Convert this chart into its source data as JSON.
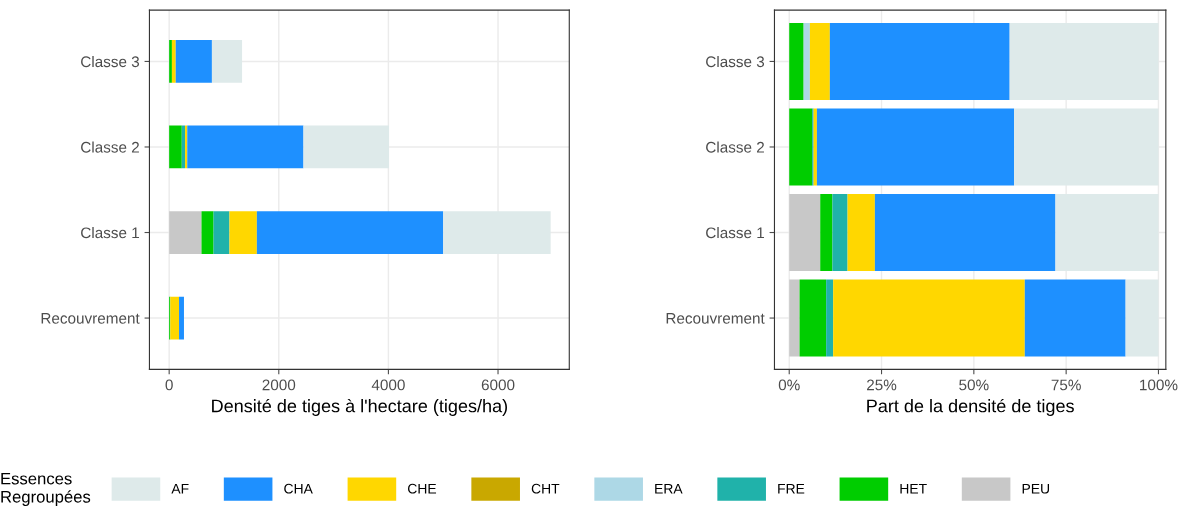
{
  "chart_data": [
    {
      "type": "bar",
      "orientation": "horizontal",
      "stacked": true,
      "xlabel": "Densité de tiges à l'hectare (tiges/ha)",
      "categories": [
        "Classe 3",
        "Classe 2",
        "Classe 1",
        "Recouvrement"
      ],
      "xlim": [
        -360,
        7300
      ],
      "xticks": [
        0,
        2000,
        4000,
        6000
      ],
      "grid": true,
      "legend": "bottom",
      "legend_title": "Essences\nRegroupées",
      "series": [
        {
          "name": "PEU",
          "color": "#c8c8c8",
          "values": [
            0,
            0,
            590,
            null
          ]
        },
        {
          "name": "HET",
          "color": "#00cd00",
          "values": [
            50,
            230,
            220,
            20
          ]
        },
        {
          "name": "FRE",
          "color": "#20b2aa",
          "values": [
            0,
            60,
            290,
            null
          ]
        },
        {
          "name": "ERA",
          "color": "#add8e6",
          "values": [
            null,
            0,
            0,
            0
          ]
        },
        {
          "name": "CHT",
          "color": "#c9a800",
          "values": [
            0,
            0,
            0,
            0
          ]
        },
        {
          "name": "CHE",
          "color": "#ffd700",
          "values": [
            70,
            40,
            500,
            160
          ]
        },
        {
          "name": "CHA",
          "color": "#1e90ff",
          "values": [
            660,
            2120,
            3400,
            90
          ]
        },
        {
          "name": "AF",
          "color": "#deeaea",
          "values": [
            550,
            1560,
            1960,
            null
          ]
        }
      ]
    },
    {
      "type": "bar",
      "orientation": "horizontal",
      "stacked": true,
      "xlabel": "Part de la densité de tiges",
      "categories": [
        "Classe 3",
        "Classe 2",
        "Classe 1",
        "Recouvrement"
      ],
      "xlim": [
        -4,
        102
      ],
      "xticks": [
        {
          "value": 0,
          "label": "0%"
        },
        {
          "value": 25,
          "label": "25%"
        },
        {
          "value": 50,
          "label": "50%"
        },
        {
          "value": 75,
          "label": "75%"
        },
        {
          "value": 100,
          "label": "100%"
        }
      ],
      "grid": true,
      "series": [
        {
          "color": "#c8c8c8",
          "values": [
            0,
            0,
            8.4,
            2.8
          ]
        },
        {
          "color": "#00cd00",
          "values": [
            3.9,
            6.2,
            3.3,
            7.2
          ]
        },
        {
          "color": "#20b2aa",
          "values": [
            0,
            0.4,
            4.1,
            1.9
          ]
        },
        {
          "color": "#add8e6",
          "values": [
            1.7,
            0,
            0,
            0
          ]
        },
        {
          "color": "#c9a800",
          "values": [
            0,
            0,
            0,
            0
          ]
        },
        {
          "color": "#ffd700",
          "values": [
            5.4,
            0.9,
            7.4,
            51.9
          ]
        },
        {
          "color": "#1e90ff",
          "values": [
            48.7,
            53.4,
            48.9,
            27.3
          ]
        },
        {
          "color": "#deeaea",
          "values": [
            40.3,
            39.1,
            27.9,
            8.9
          ]
        }
      ]
    }
  ]
}
